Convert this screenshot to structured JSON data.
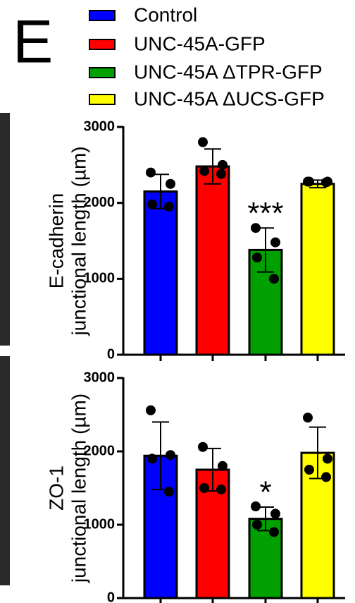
{
  "panel_label": "E",
  "legend": [
    {
      "name": "Control",
      "color": "#0000ff"
    },
    {
      "name": "UNC-45A-GFP",
      "color": "#ff0000"
    },
    {
      "name": "UNC-45A ΔTPR-GFP",
      "color": "#00a000"
    },
    {
      "name": "UNC-45A ΔUCS-GFP",
      "color": "#ffff00"
    }
  ],
  "chart_data": [
    {
      "type": "bar",
      "y_label": [
        "E-cadherin",
        "junctional length (µm)"
      ],
      "values": [
        2150,
        2480,
        1380,
        2250
      ],
      "errors": [
        225,
        230,
        290,
        50
      ],
      "points": [
        [
          2400,
          2250,
          1980,
          1950
        ],
        [
          2800,
          2500,
          2420,
          2380
        ],
        [
          1670,
          1480,
          1280,
          1000
        ],
        [
          2280,
          2280,
          2280,
          2270
        ]
      ],
      "annotations": [
        {
          "index": 2,
          "text": "***"
        }
      ],
      "ylim": [
        0,
        3000
      ],
      "yticks": [
        0,
        1000,
        2000,
        3000
      ]
    },
    {
      "type": "bar",
      "y_label": [
        "ZO-1",
        "junctional length (µm)"
      ],
      "values": [
        1940,
        1750,
        1080,
        1980
      ],
      "errors": [
        460,
        290,
        160,
        350
      ],
      "points": [
        [
          2560,
          1950,
          1900,
          1450
        ],
        [
          2060,
          1800,
          1500,
          1480
        ],
        [
          1250,
          1150,
          1000,
          900
        ],
        [
          2460,
          1900,
          1750,
          1650
        ]
      ],
      "annotations": [
        {
          "index": 2,
          "text": "*"
        }
      ],
      "ylim": [
        0,
        3000
      ],
      "yticks": [
        0,
        1000,
        2000,
        3000
      ]
    }
  ]
}
